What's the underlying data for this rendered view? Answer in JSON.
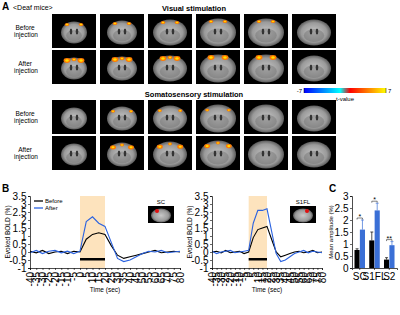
{
  "figure": {
    "panel_labels": [
      "A",
      "B",
      "C"
    ],
    "panel_a": {
      "group": "<Deaf mice>",
      "sections": [
        {
          "title": "Visual stimulation",
          "rows": [
            "Before injection",
            "After injection"
          ]
        },
        {
          "title": "Somatosensory stimulation",
          "rows": [
            "Before injection",
            "After injection"
          ]
        }
      ],
      "colorbar": {
        "range": [
          -7,
          7
        ],
        "ticks": [
          -7,
          7
        ],
        "label": "t-value"
      }
    }
  },
  "chart_data": [
    {
      "type": "line",
      "title": "SC",
      "x": [
        -40,
        -35,
        -30,
        -25,
        -20,
        -15,
        -10,
        -5,
        0,
        5,
        10,
        15,
        20,
        25,
        30,
        35,
        40,
        45,
        50,
        55,
        60,
        65,
        70,
        75,
        80
      ],
      "series": [
        {
          "name": "Before",
          "color": "#000000",
          "values": [
            0.05,
            -0.05,
            0.1,
            -0.1,
            0.0,
            0.05,
            -0.1,
            0.05,
            0.0,
            0.8,
            1.1,
            1.2,
            1.1,
            0.4,
            -0.2,
            -0.4,
            -0.3,
            -0.2,
            -0.1,
            0.0,
            0.1,
            -0.05,
            0.0,
            0.05,
            0.0
          ]
        },
        {
          "name": "After",
          "color": "#2a62e0",
          "values": [
            -0.05,
            0.1,
            -0.1,
            0.05,
            0.1,
            -0.05,
            0.05,
            -0.1,
            0.05,
            1.9,
            2.2,
            1.8,
            1.6,
            0.6,
            -0.4,
            -0.6,
            -0.5,
            -0.3,
            -0.1,
            0.05,
            0.0,
            0.1,
            -0.05,
            0.0,
            0.05
          ]
        }
      ],
      "xlabel": "Time (sec)",
      "ylabel": "Evoked BOLD (%)",
      "xlim": [
        -40,
        80
      ],
      "ylim": [
        -1,
        3.5
      ],
      "xticks": [
        -40,
        -35,
        -30,
        -25,
        -20,
        -15,
        -10,
        -5,
        0,
        5,
        10,
        15,
        20,
        25,
        30,
        35,
        40,
        45,
        50,
        55,
        60,
        65,
        70,
        75,
        80
      ],
      "yticks": [
        -1,
        -0.5,
        0,
        0.5,
        1,
        1.5,
        2,
        2.5,
        3,
        3.5
      ],
      "stimulus": [
        0,
        20
      ],
      "legend": "upper left"
    },
    {
      "type": "line",
      "title": "S1FL",
      "x": [
        -40,
        -35,
        -30,
        -25,
        -20,
        -15,
        -10,
        -5,
        0,
        5,
        10,
        15,
        20,
        25,
        30,
        35,
        40,
        45,
        50,
        55,
        60,
        65,
        70,
        75,
        80
      ],
      "series": [
        {
          "color": "#000000",
          "values": [
            0.0,
            0.05,
            -0.05,
            0.1,
            -0.05,
            0.0,
            0.05,
            -0.1,
            0.0,
            0.9,
            1.4,
            1.5,
            1.6,
            0.8,
            0.0,
            -0.3,
            -0.2,
            -0.1,
            0.0,
            0.05,
            -0.05,
            0.0,
            0.1,
            -0.05,
            0.0
          ]
        },
        {
          "color": "#2a62e0",
          "values": [
            0.05,
            -0.1,
            0.0,
            0.05,
            0.1,
            -0.05,
            0.0,
            0.05,
            0.1,
            1.8,
            2.6,
            2.6,
            2.7,
            1.3,
            -0.1,
            -0.6,
            -0.5,
            -0.3,
            -0.1,
            0.0,
            0.1,
            -0.05,
            0.05,
            0.0,
            -0.05
          ]
        }
      ],
      "xlabel": "Time (sec)",
      "ylabel": "Evoked BOLD (%)",
      "xlim": [
        -40,
        80
      ],
      "ylim": [
        -1,
        3.5
      ],
      "xticks": [
        -40,
        -35,
        -30,
        -25,
        -20,
        -15,
        -10,
        -5,
        0,
        5,
        10,
        15,
        20,
        25,
        30,
        35,
        40,
        45,
        50,
        55,
        60,
        65,
        70,
        75,
        80
      ],
      "yticks": [
        -1,
        -0.5,
        0,
        0.5,
        1,
        1.5,
        2,
        2.5,
        3,
        3.5
      ],
      "stimulus": [
        0,
        20
      ]
    },
    {
      "type": "bar",
      "categories": [
        "SC",
        "S1FL",
        "S2"
      ],
      "series": [
        {
          "color": "#000000",
          "values": [
            0.75,
            1.15,
            0.35
          ],
          "errors": [
            0.05,
            0.35,
            0.08
          ]
        },
        {
          "color": "#3a6fd6",
          "values": [
            1.6,
            2.4,
            0.95
          ],
          "errors": [
            0.4,
            0.3,
            0.15
          ]
        }
      ],
      "ylabel": "Mean amplitude (%)",
      "ylim": [
        0,
        3
      ],
      "yticks": [
        0,
        0.5,
        1,
        1.5,
        2,
        2.5,
        3
      ],
      "annotations": [
        {
          "category": 0,
          "text": "*"
        },
        {
          "category": 1,
          "text": "*"
        },
        {
          "category": 2,
          "text": "**"
        }
      ]
    }
  ]
}
